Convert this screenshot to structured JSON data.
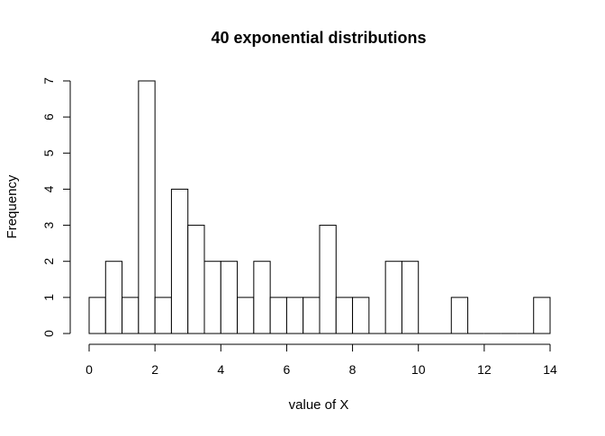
{
  "chart_data": {
    "type": "bar",
    "subtype": "histogram",
    "title": "40 exponential distributions",
    "xlabel": "value of X",
    "ylabel": "Frequency",
    "bin_width": 0.5,
    "bin_edges_start": 0,
    "values": [
      1,
      2,
      1,
      7,
      1,
      4,
      3,
      2,
      2,
      1,
      2,
      1,
      1,
      1,
      3,
      1,
      1,
      0,
      2,
      2,
      0,
      0,
      1,
      0,
      0,
      0,
      0,
      1
    ],
    "xlim": [
      0,
      14
    ],
    "ylim": [
      0,
      7
    ],
    "x_ticks": [
      0,
      2,
      4,
      6,
      8,
      10,
      12,
      14
    ],
    "y_ticks": [
      0,
      1,
      2,
      3,
      4,
      5,
      6,
      7
    ],
    "x_tick_labels": [
      "0",
      "2",
      "4",
      "6",
      "8",
      "10",
      "12",
      "14"
    ],
    "y_tick_labels": [
      "0",
      "1",
      "2",
      "3",
      "4",
      "5",
      "6",
      "7"
    ],
    "grid": false,
    "bar_fill": "#ffffff",
    "bar_stroke": "#000000"
  }
}
